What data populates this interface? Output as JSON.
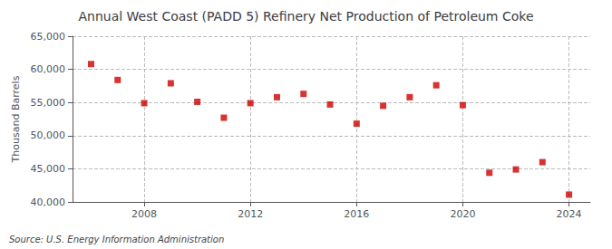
{
  "chart_data": {
    "type": "scatter",
    "title": "Annual West Coast (PADD 5) Refinery Net Production of Petroleum Coke",
    "ylabel": "Thousand Barrels",
    "annotation": "Source: U.S. Energy Information Administration",
    "x": [
      2006,
      2007,
      2008,
      2009,
      2010,
      2011,
      2012,
      2013,
      2014,
      2015,
      2016,
      2017,
      2018,
      2019,
      2020,
      2021,
      2022,
      2023,
      2024
    ],
    "values": [
      60800,
      58400,
      54900,
      57900,
      55100,
      52700,
      54900,
      55800,
      56300,
      54700,
      51800,
      54500,
      55800,
      57600,
      54600,
      44400,
      44900,
      46000,
      41100
    ],
    "color": "#cc0000",
    "marker": "square",
    "xlim": [
      2005.3,
      2024.8
    ],
    "xticks": [
      2008,
      2012,
      2016,
      2020,
      2024
    ],
    "ylim": [
      40000,
      65000
    ],
    "yticks": [
      {
        "value": 40000,
        "label": "40,000"
      },
      {
        "value": 45000,
        "label": "45,000"
      },
      {
        "value": 50000,
        "label": "50,000"
      },
      {
        "value": 55000,
        "label": "55,000"
      },
      {
        "value": 60000,
        "label": "60,000"
      },
      {
        "value": 65000,
        "label": "65,000"
      }
    ],
    "grid": true
  }
}
